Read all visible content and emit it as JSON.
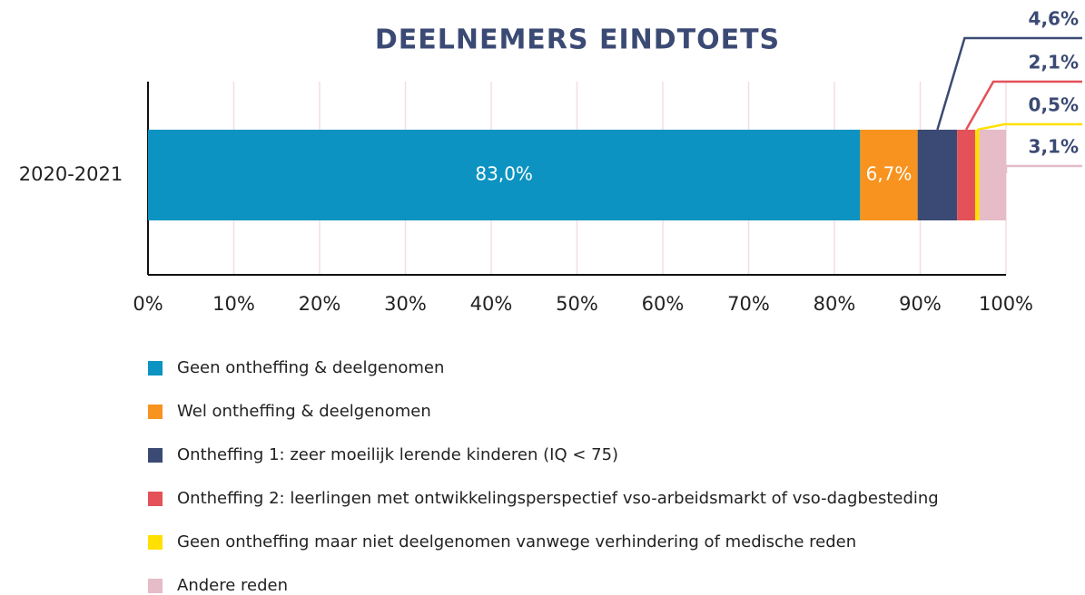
{
  "chart_data": {
    "type": "stacked-bar-horizontal",
    "title": "DEELNEMERS EINDTOETS",
    "categories": [
      "2020-2021"
    ],
    "series": [
      {
        "name": "Geen ontheffing & deelgenomen",
        "color": "#0c93c1",
        "values": [
          83.0
        ],
        "value_labels": [
          "83,0%"
        ]
      },
      {
        "name": "Wel ontheffing & deelgenomen",
        "color": "#f7931e",
        "values": [
          6.7
        ],
        "value_labels": [
          "6,7%"
        ]
      },
      {
        "name": "Ontheffing 1: zeer moeilijk lerende kinderen (IQ < 75)",
        "color": "#3b4a74",
        "values": [
          4.6
        ],
        "value_labels": [
          "4,6%"
        ]
      },
      {
        "name": "Ontheffing 2: leerlingen met ontwikkelingsperspectief vso-arbeidsmarkt of vso-dagbesteding",
        "color": "#e45158",
        "values": [
          2.1
        ],
        "value_labels": [
          "2,1%"
        ]
      },
      {
        "name": "Geen ontheffing maar niet deelgenomen vanwege verhindering of medische reden",
        "color": "#ffe000",
        "values": [
          0.5
        ],
        "value_labels": [
          "0,5%"
        ]
      },
      {
        "name": "Andere reden",
        "color": "#e5bcc8",
        "values": [
          3.1
        ],
        "value_labels": [
          "3,1%"
        ]
      }
    ],
    "xlim": [
      0,
      100
    ],
    "xticks": [
      {
        "value": 0,
        "label": "0%"
      },
      {
        "value": 10,
        "label": "10%"
      },
      {
        "value": 20,
        "label": "20%"
      },
      {
        "value": 30,
        "label": "30%"
      },
      {
        "value": 40,
        "label": "40%"
      },
      {
        "value": 50,
        "label": "50%"
      },
      {
        "value": 60,
        "label": "60%"
      },
      {
        "value": 70,
        "label": "70%"
      },
      {
        "value": 80,
        "label": "80%"
      },
      {
        "value": 90,
        "label": "90%"
      },
      {
        "value": 100,
        "label": "100%"
      }
    ],
    "grid": true
  }
}
